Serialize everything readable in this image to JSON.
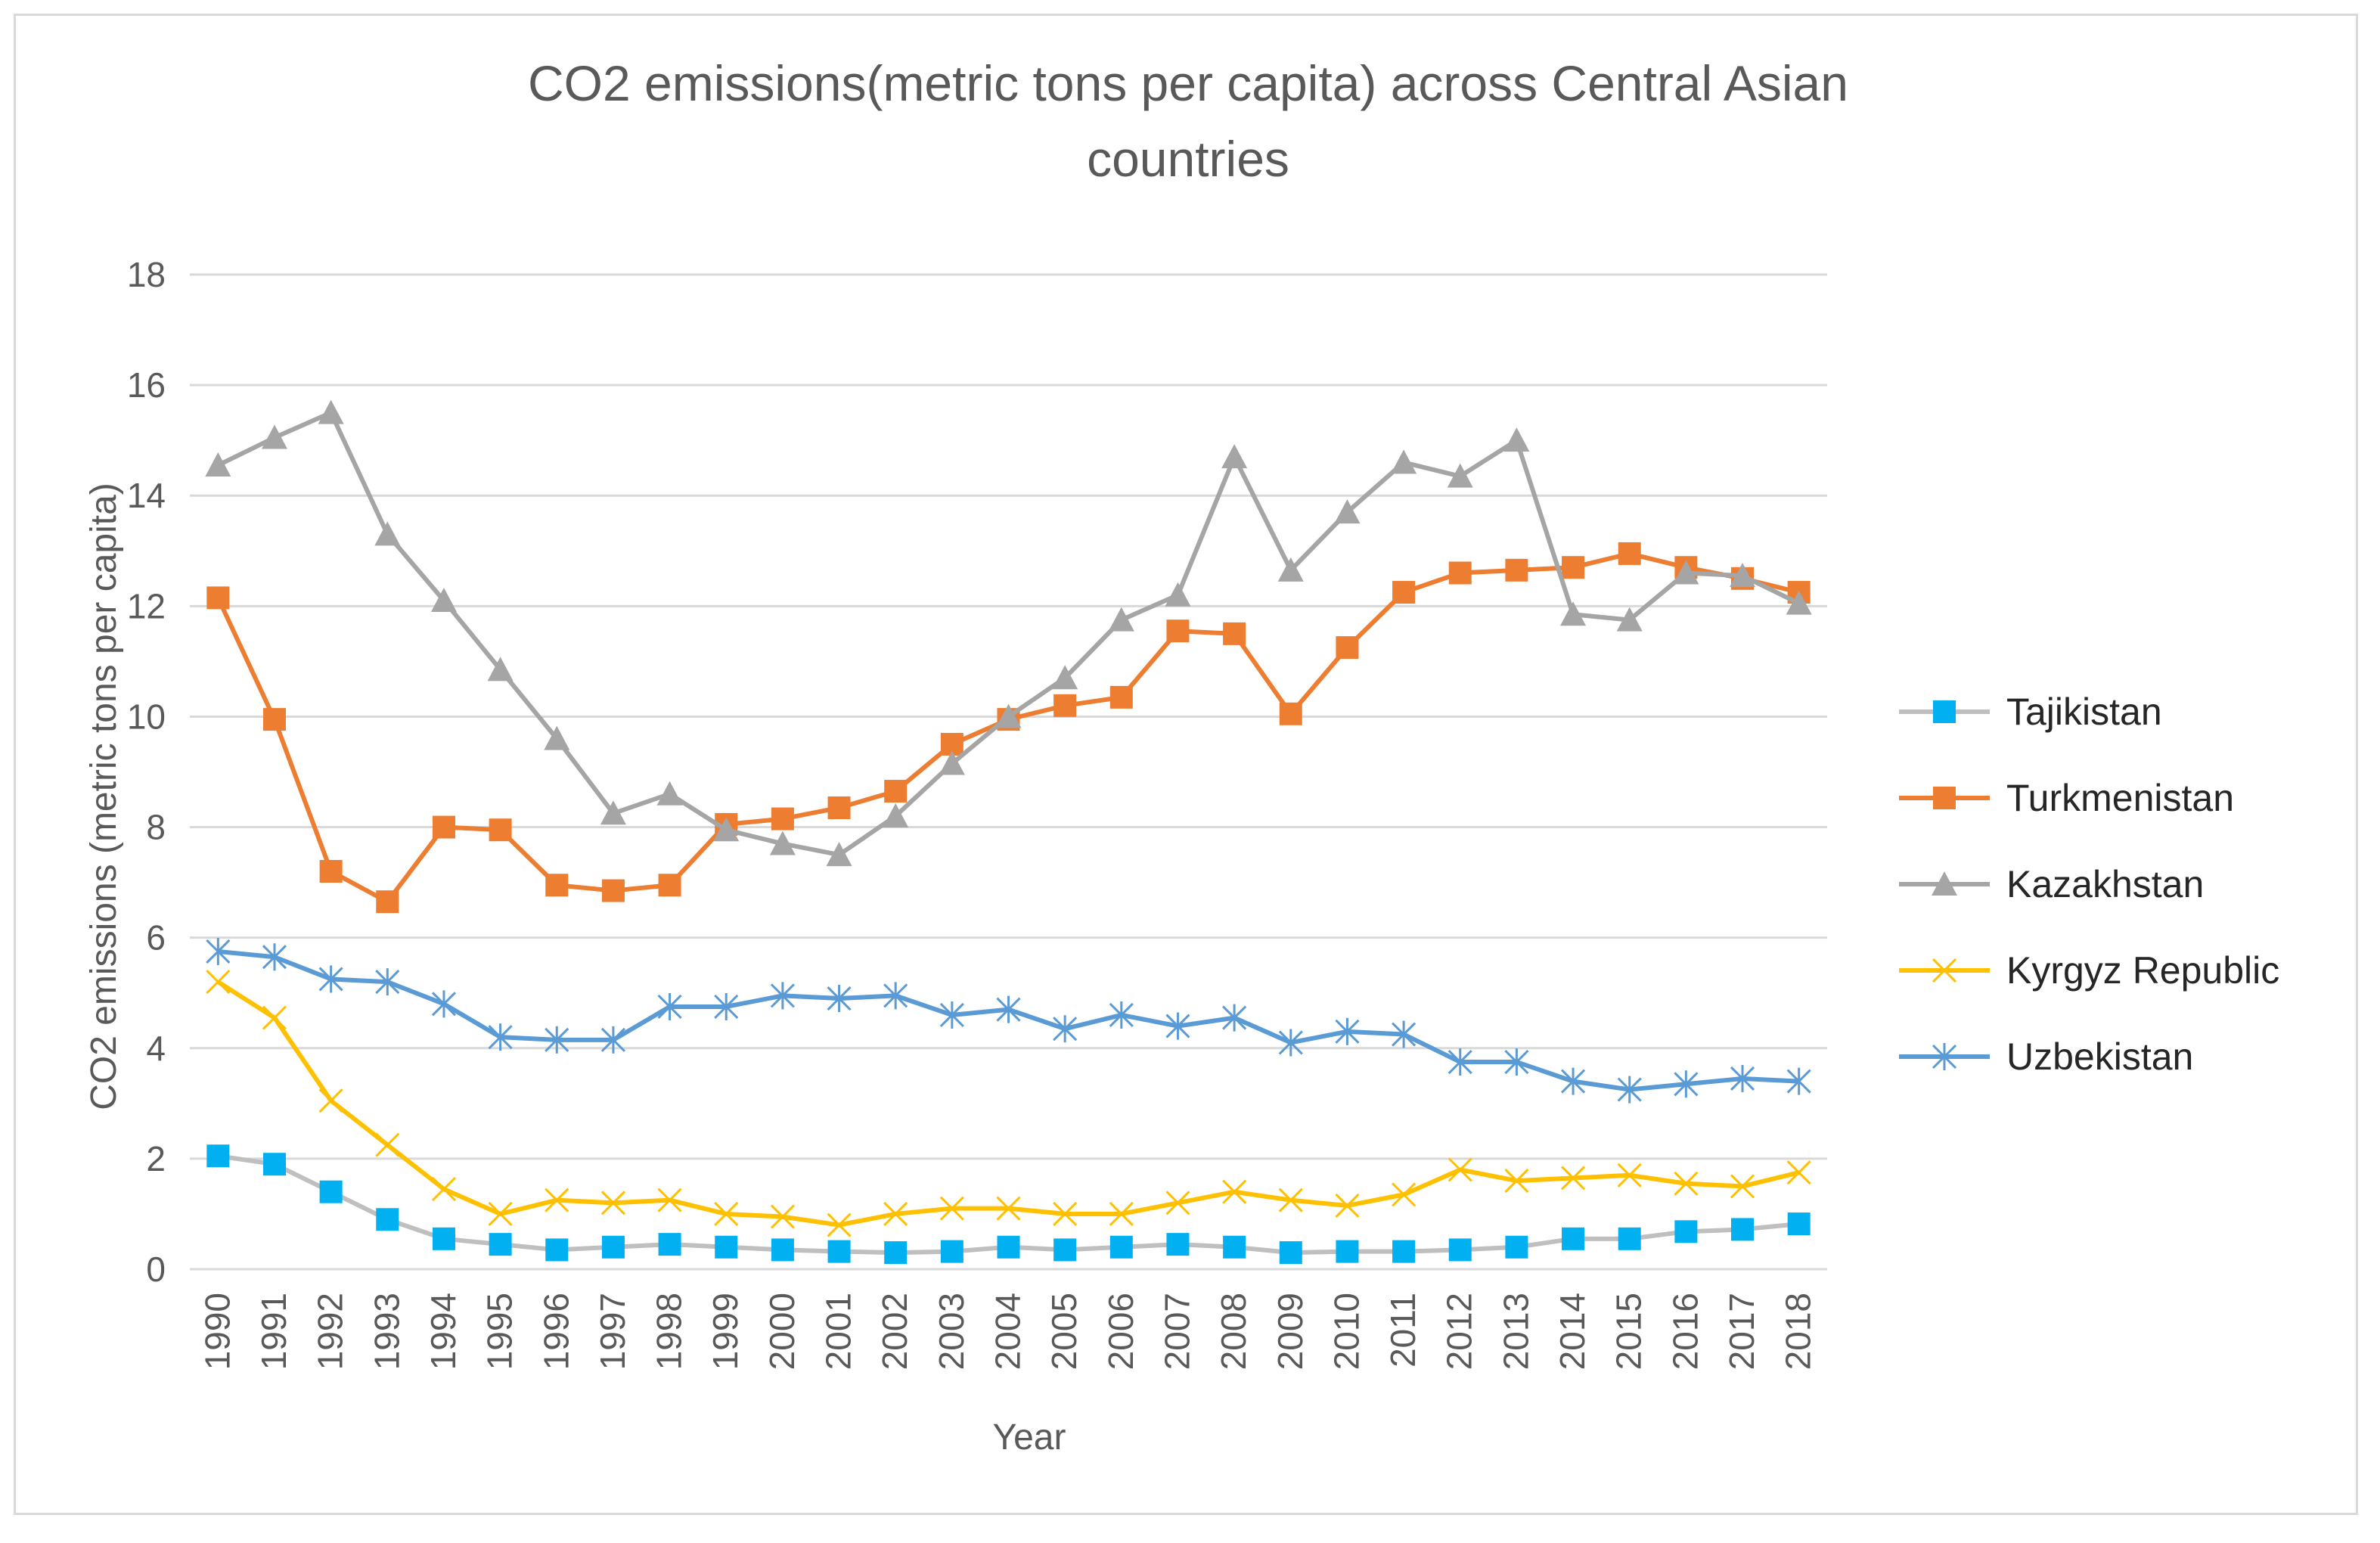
{
  "chart_data": {
    "type": "line",
    "title_line1": "CO2 emissions(metric tons per capita) across Central Asian",
    "title_line2": "countries",
    "xlabel": "Year",
    "ylabel": "CO2 emissions (metric tons per capita)",
    "ylim": [
      0,
      18
    ],
    "yticks": [
      0,
      2,
      4,
      6,
      8,
      10,
      12,
      14,
      16,
      18
    ],
    "grid": true,
    "legend_position": "right",
    "categories": [
      "1990",
      "1991",
      "1992",
      "1993",
      "1994",
      "1995",
      "1996",
      "1997",
      "1998",
      "1999",
      "2000",
      "2001",
      "2002",
      "2003",
      "2004",
      "2005",
      "2006",
      "2007",
      "2008",
      "2009",
      "2010",
      "2011",
      "2012",
      "2013",
      "2014",
      "2015",
      "2016",
      "2017",
      "2018"
    ],
    "series": [
      {
        "name": "Tajikistan",
        "color": "#00b0f0",
        "line_color": "#bfbfbf",
        "marker": "square",
        "values": [
          2.05,
          1.9,
          1.4,
          0.9,
          0.55,
          0.45,
          0.35,
          0.4,
          0.45,
          0.4,
          0.35,
          0.32,
          0.3,
          0.32,
          0.4,
          0.35,
          0.4,
          0.45,
          0.4,
          0.3,
          0.32,
          0.32,
          0.35,
          0.4,
          0.55,
          0.55,
          0.68,
          0.72,
          0.82
        ]
      },
      {
        "name": "Turkmenistan",
        "color": "#ed7d31",
        "line_color": "#ed7d31",
        "marker": "square",
        "values": [
          12.15,
          9.95,
          7.2,
          6.65,
          8.0,
          7.95,
          6.95,
          6.85,
          6.95,
          8.05,
          8.15,
          8.35,
          8.65,
          9.5,
          9.95,
          10.2,
          10.35,
          11.55,
          11.5,
          10.05,
          11.25,
          12.25,
          12.6,
          12.65,
          12.7,
          12.95,
          12.7,
          12.5,
          12.25
        ]
      },
      {
        "name": "Kazakhstan",
        "color": "#a5a5a5",
        "line_color": "#a5a5a5",
        "marker": "triangle",
        "values": [
          14.55,
          15.05,
          15.5,
          13.3,
          12.1,
          10.85,
          9.6,
          8.25,
          8.6,
          7.95,
          7.7,
          7.5,
          8.2,
          9.15,
          10.0,
          10.7,
          11.75,
          12.2,
          14.7,
          12.65,
          13.7,
          14.6,
          14.35,
          15.0,
          11.85,
          11.75,
          12.6,
          12.55,
          12.05
        ]
      },
      {
        "name": "Kyrgyz Republic",
        "color": "#ffc000",
        "line_color": "#ffc000",
        "marker": "x",
        "values": [
          5.2,
          4.55,
          3.05,
          2.25,
          1.45,
          1.0,
          1.25,
          1.2,
          1.25,
          1.0,
          0.95,
          0.8,
          1.0,
          1.1,
          1.1,
          1.0,
          1.0,
          1.2,
          1.4,
          1.25,
          1.15,
          1.35,
          1.8,
          1.6,
          1.65,
          1.7,
          1.55,
          1.5,
          1.75
        ]
      },
      {
        "name": "Uzbekistan",
        "color": "#5b9bd5",
        "line_color": "#5b9bd5",
        "marker": "asterisk",
        "values": [
          5.75,
          5.65,
          5.25,
          5.2,
          4.8,
          4.2,
          4.15,
          4.15,
          4.75,
          4.75,
          4.95,
          4.9,
          4.95,
          4.6,
          4.7,
          4.35,
          4.6,
          4.4,
          4.55,
          4.1,
          4.3,
          4.25,
          3.75,
          3.75,
          3.4,
          3.25,
          3.35,
          3.45,
          3.4
        ]
      }
    ]
  }
}
